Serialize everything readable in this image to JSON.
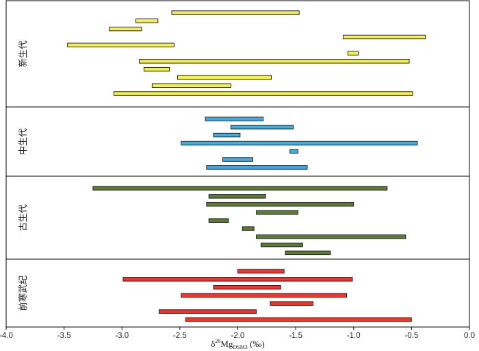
{
  "chart_data": {
    "type": "bar",
    "orientation": "horizontal-range",
    "xlabel": {
      "delta": "δ",
      "sup": "26",
      "main": "Mg",
      "sub": "DSM3",
      "unit": " (‰)"
    },
    "xlim": [
      -4.0,
      0.0
    ],
    "xticks": [
      "-4.0",
      "-3.5",
      "-3.0",
      "-2.5",
      "-2.0",
      "-1.5",
      "-1.0",
      "-0.5",
      "0.0"
    ],
    "grid": false,
    "legend": "none",
    "panels": [
      {
        "name": "新生代",
        "color": "#f3ec5b",
        "ranges": [
          [
            -2.57,
            -1.47
          ],
          [
            -2.88,
            -2.69
          ],
          [
            -3.11,
            -2.83
          ],
          [
            -1.09,
            -0.38
          ],
          [
            -3.47,
            -2.55
          ],
          [
            -1.05,
            -0.96
          ],
          [
            -2.85,
            -0.52
          ],
          [
            -2.81,
            -2.59
          ],
          [
            -2.52,
            -1.71
          ],
          [
            -2.74,
            -2.06
          ],
          [
            -3.07,
            -0.49
          ]
        ]
      },
      {
        "name": "中生代",
        "color": "#4aa8d8",
        "ranges": [
          [
            -2.28,
            -1.78
          ],
          [
            -2.06,
            -1.52
          ],
          [
            -2.21,
            -1.98
          ],
          [
            -2.49,
            -0.45
          ],
          [
            -1.55,
            -1.48
          ],
          [
            -2.13,
            -1.87
          ],
          [
            -2.27,
            -1.4
          ]
        ]
      },
      {
        "name": "古生代",
        "color": "#5f7a35",
        "ranges": [
          [
            -3.25,
            -0.71
          ],
          [
            -2.25,
            -1.76
          ],
          [
            -2.27,
            -1.0
          ],
          [
            -1.84,
            -1.48
          ],
          [
            -2.25,
            -2.08
          ],
          [
            -1.96,
            -1.86
          ],
          [
            -1.84,
            -0.55
          ],
          [
            -1.8,
            -1.44
          ],
          [
            -1.59,
            -1.2
          ]
        ]
      },
      {
        "name": "前寒武纪",
        "color": "#e43a33",
        "ranges": [
          [
            -2.0,
            -1.6
          ],
          [
            -2.99,
            -1.01
          ],
          [
            -2.21,
            -1.63
          ],
          [
            -2.49,
            -1.06
          ],
          [
            -1.72,
            -1.35
          ],
          [
            -2.68,
            -1.84
          ],
          [
            -2.45,
            -0.5
          ]
        ]
      }
    ]
  }
}
